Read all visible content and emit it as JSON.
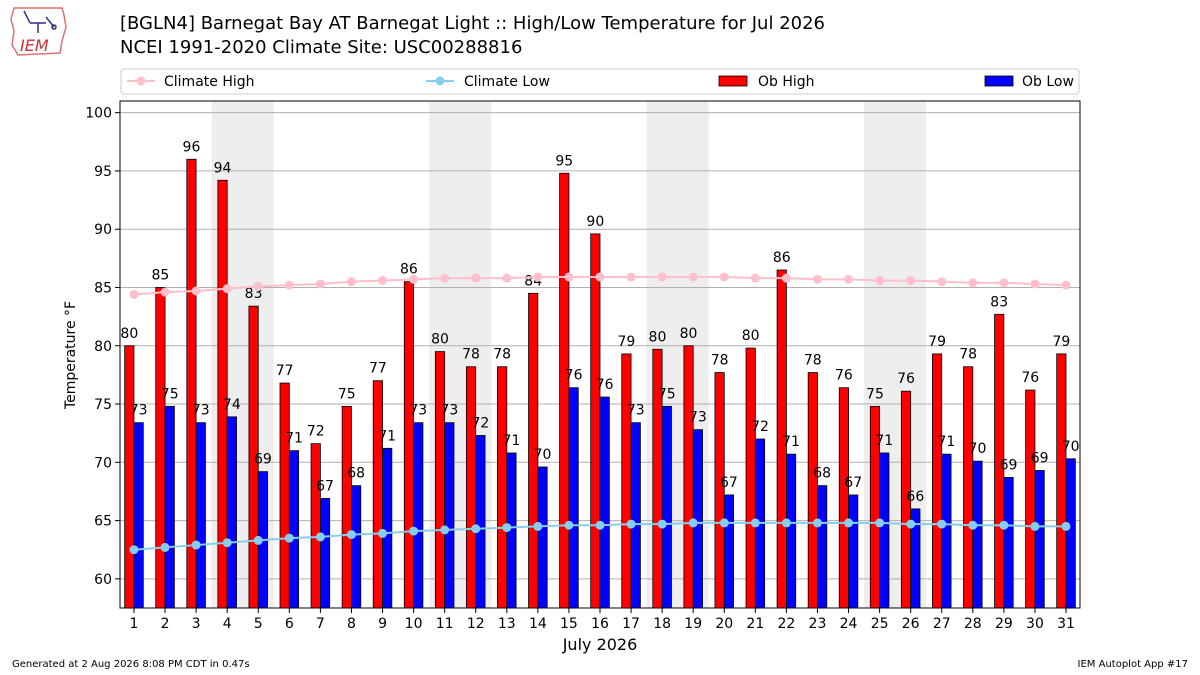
{
  "header": {
    "title_line1": "[BGLN4] Barnegat Bay  AT Barnegat Light :: High/Low Temperature for Jul 2026",
    "title_line2": "NCEI 1991-2020 Climate Site: USC00288816",
    "logo_text": "IEM"
  },
  "footer": {
    "generated": "Generated at 2 Aug 2026 8:08 PM CDT in 0.47s",
    "app": "IEM Autoplot App #17"
  },
  "colors": {
    "ob_high": "#ff0000",
    "ob_low": "#0000ff",
    "climate_high": "#ffc0cb",
    "climate_low": "#87ceeb",
    "weekend_band": "#eeeeee",
    "grid": "#b0b0b0"
  },
  "chart_data": {
    "type": "bar",
    "title": "[BGLN4] Barnegat Bay  AT Barnegat Light :: High/Low Temperature for Jul 2026",
    "xlabel": "July 2026",
    "ylabel": "Temperature °F",
    "ylim": [
      57.5,
      101
    ],
    "yticks": [
      60,
      65,
      70,
      75,
      80,
      85,
      90,
      95,
      100
    ],
    "grid": true,
    "legend_position": "top",
    "weekend_bands": [
      [
        4,
        5
      ],
      [
        11,
        12
      ],
      [
        18,
        19
      ],
      [
        25,
        26
      ]
    ],
    "categories": [
      "1",
      "2",
      "3",
      "4",
      "5",
      "6",
      "7",
      "8",
      "9",
      "10",
      "11",
      "12",
      "13",
      "14",
      "15",
      "16",
      "17",
      "18",
      "19",
      "20",
      "21",
      "22",
      "23",
      "24",
      "25",
      "26",
      "27",
      "28",
      "29",
      "30",
      "31"
    ],
    "series": [
      {
        "name": "Climate High",
        "kind": "line",
        "values": [
          84.4,
          84.6,
          84.7,
          84.9,
          85.1,
          85.2,
          85.3,
          85.5,
          85.6,
          85.7,
          85.8,
          85.8,
          85.8,
          85.9,
          85.9,
          85.9,
          85.9,
          85.9,
          85.9,
          85.9,
          85.8,
          85.8,
          85.7,
          85.7,
          85.6,
          85.6,
          85.5,
          85.4,
          85.4,
          85.3,
          85.2
        ]
      },
      {
        "name": "Climate Low",
        "kind": "line",
        "values": [
          62.5,
          62.7,
          62.9,
          63.1,
          63.3,
          63.5,
          63.6,
          63.8,
          63.9,
          64.1,
          64.2,
          64.3,
          64.4,
          64.5,
          64.6,
          64.6,
          64.7,
          64.7,
          64.8,
          64.8,
          64.8,
          64.8,
          64.8,
          64.8,
          64.8,
          64.7,
          64.7,
          64.6,
          64.6,
          64.5,
          64.5
        ]
      },
      {
        "name": "Ob High",
        "kind": "bar",
        "values": [
          80,
          85,
          96,
          94.2,
          83.4,
          76.8,
          71.6,
          74.8,
          77.0,
          85.5,
          79.5,
          78.2,
          78.2,
          84.5,
          94.8,
          89.6,
          79.3,
          79.7,
          80,
          77.7,
          79.8,
          86.5,
          77.7,
          76.4,
          74.8,
          76.1,
          79.3,
          78.2,
          82.7,
          76.2,
          79.3
        ],
        "labels": [
          "80",
          "85",
          "96",
          "94",
          "83",
          "77",
          "72",
          "75",
          "77",
          "86",
          "80",
          "78",
          "78",
          "84",
          "95",
          "90",
          "79",
          "80",
          "80",
          "78",
          "80",
          "86",
          "78",
          "76",
          "75",
          "76",
          "79",
          "78",
          "83",
          "76",
          "79"
        ]
      },
      {
        "name": "Ob Low",
        "kind": "bar",
        "values": [
          73.4,
          74.8,
          73.4,
          73.9,
          69.2,
          71.0,
          66.9,
          68.0,
          71.2,
          73.4,
          73.4,
          72.3,
          70.8,
          69.6,
          76.4,
          75.6,
          73.4,
          74.8,
          72.8,
          67.2,
          72.0,
          70.7,
          68.0,
          67.2,
          70.8,
          66.0,
          70.7,
          70.1,
          68.7,
          69.3,
          70.3
        ],
        "labels": [
          "73",
          "75",
          "73",
          "74",
          "69",
          "71",
          "67",
          "68",
          "71",
          "73",
          "73",
          "72",
          "71",
          "70",
          "76",
          "76",
          "73",
          "75",
          "73",
          "67",
          "72",
          "71",
          "68",
          "67",
          "71",
          "66",
          "71",
          "70",
          "69",
          "69",
          "70"
        ]
      }
    ]
  }
}
